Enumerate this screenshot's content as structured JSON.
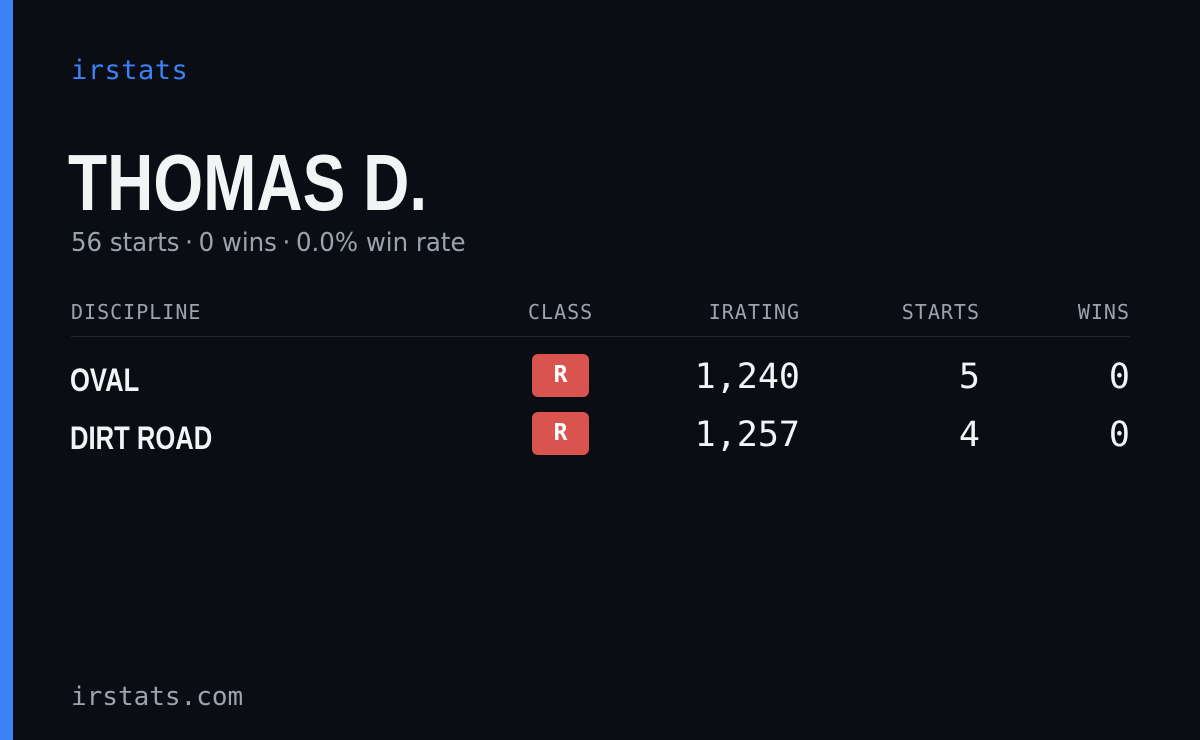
{
  "brand": "irstats",
  "driver": {
    "name": "THOMAS D.",
    "starts": "56 starts",
    "wins": "0 wins",
    "win_rate": "0.0% win rate",
    "separator": "·"
  },
  "table": {
    "headers": {
      "discipline": "DISCIPLINE",
      "class": "CLASS",
      "irating": "IRATING",
      "starts": "STARTS",
      "wins": "WINS"
    },
    "rows": [
      {
        "discipline": "OVAL",
        "class": "R",
        "irating": "1,240",
        "starts": "5",
        "wins": "0"
      },
      {
        "discipline": "DIRT ROAD",
        "class": "R",
        "irating": "1,257",
        "starts": "4",
        "wins": "0"
      }
    ]
  },
  "footer": "irstats.com",
  "colors": {
    "background": "#0a0d14",
    "accent": "#3b82f6",
    "class_r": "#d9534f",
    "text_primary": "#f3f4f6",
    "text_muted": "#9ca3af"
  }
}
